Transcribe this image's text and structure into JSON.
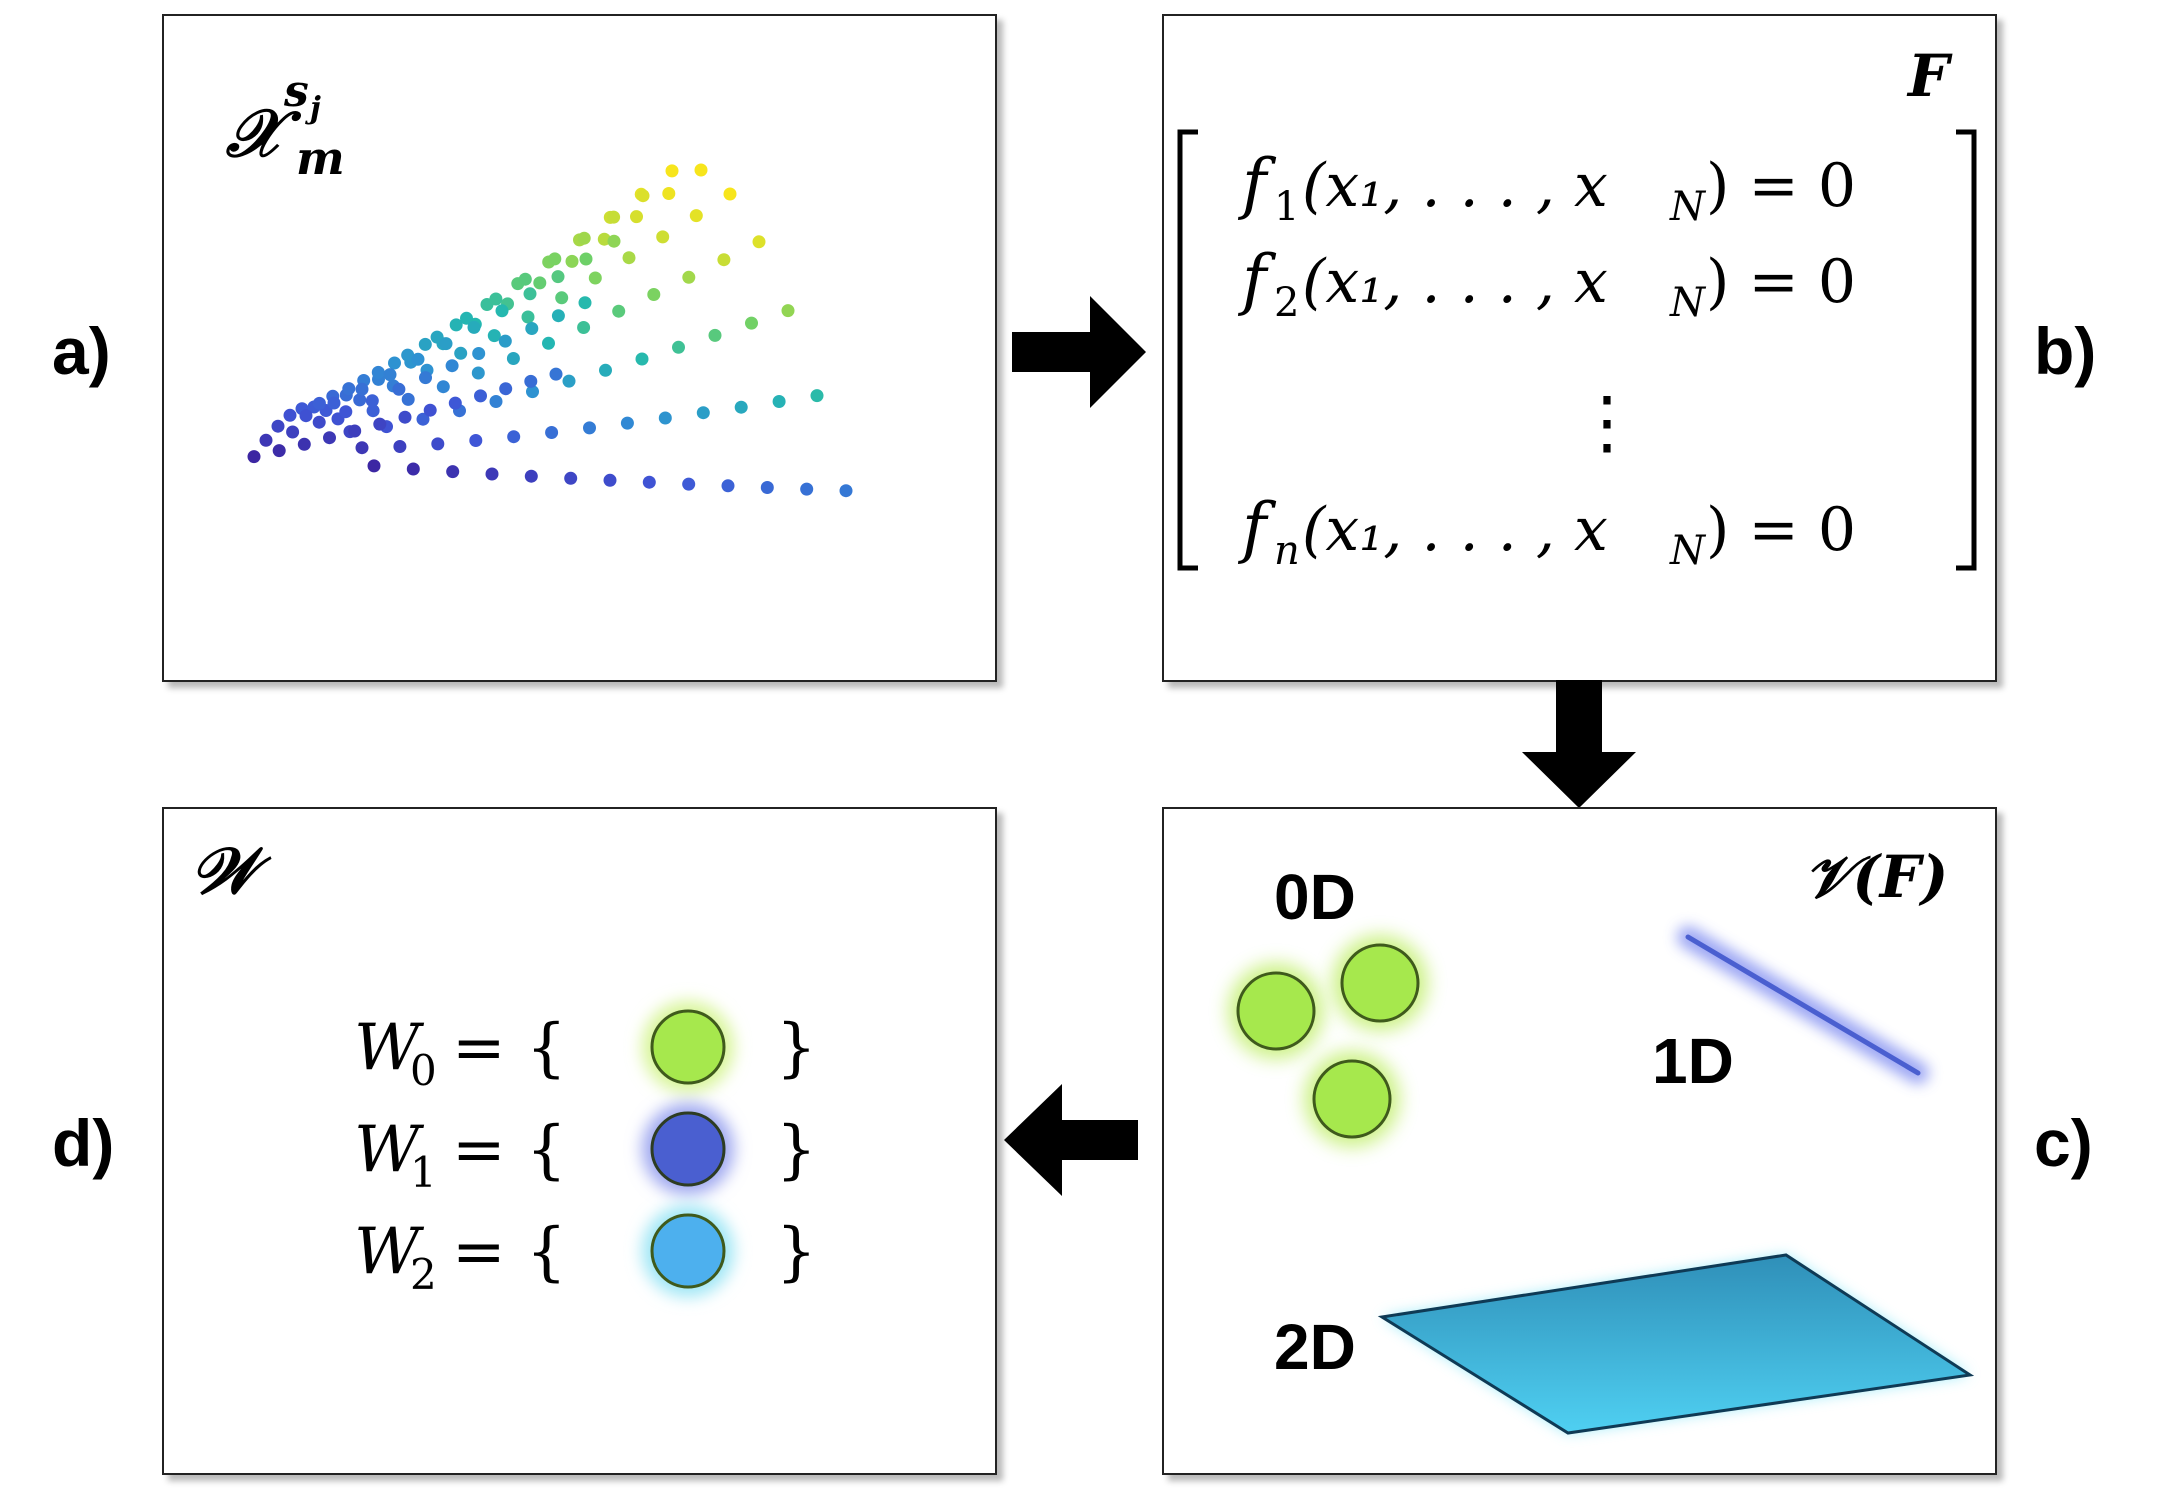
{
  "panel_labels": {
    "a": "a)",
    "b": "b)",
    "c": "c)",
    "d": "d)"
  },
  "panel_a": {
    "title": "𝒳",
    "superscript": "s",
    "superscript_sub": "j",
    "subscript": "m",
    "colormap": [
      "#3b1f9a",
      "#3f55d6",
      "#2f8fd4",
      "#24b8b0",
      "#6cd069",
      "#c8dd35",
      "#f7e51c"
    ]
  },
  "panel_b": {
    "title": "F",
    "equations": [
      {
        "f_sub": "1",
        "args": "(x₁, . . . , x",
        "args_sub": "N",
        "rhs": ") = 0"
      },
      {
        "f_sub": "2",
        "args": "(x₁, . . . , x",
        "args_sub": "N",
        "rhs": ") = 0"
      },
      {
        "f_sub": "n",
        "args": "(x₁, . . . , x",
        "args_sub": "N",
        "rhs": ") = 0"
      }
    ],
    "vdots": "⋮"
  },
  "panel_c": {
    "title": "𝒱(F)",
    "labels": {
      "zero_d": "0D",
      "one_d": "1D",
      "two_d": "2D"
    },
    "colors": {
      "points": "#a6e84d",
      "line": "#4a5fd0",
      "plane": "#3cb7e0"
    }
  },
  "panel_d": {
    "title": "𝒲",
    "rows": [
      {
        "name": "W",
        "sub": "0",
        "eq": "= {",
        "close": "}",
        "color": "#a6e84d",
        "glow": "#d8f59a"
      },
      {
        "name": "W",
        "sub": "1",
        "eq": "= {",
        "close": "}",
        "color": "#4a5fd0",
        "glow": "#9fa8f0"
      },
      {
        "name": "W",
        "sub": "2",
        "eq": "= {",
        "close": "}",
        "color": "#4db0ee",
        "glow": "#9fe6f5"
      }
    ]
  }
}
